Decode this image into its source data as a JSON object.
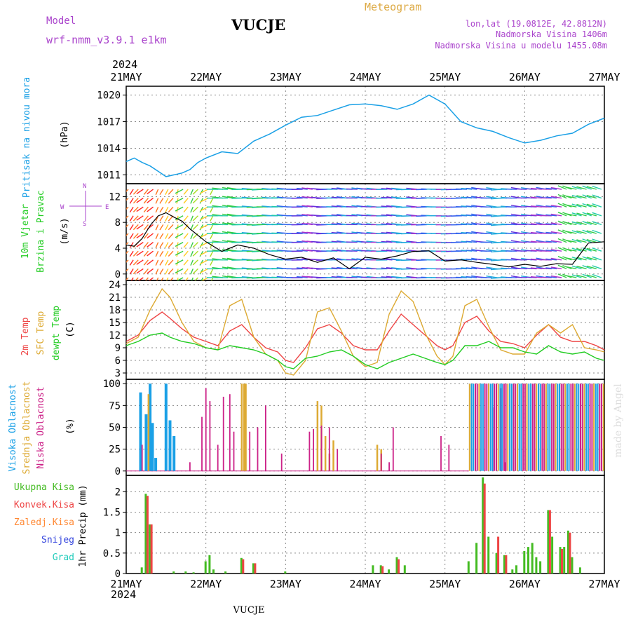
{
  "header": {
    "model_label": "Model",
    "model_name": "wrf-nmm_v3.9.1  e1km",
    "station": "VUCJE",
    "meteogram_label": "Meteogram",
    "lonlat": "lon,lat (19.0812E, 42.8812N)",
    "elevation": "Nadmorska Visina 1406m",
    "model_elevation": "Nadmorska Visina u modelu 1455.08m"
  },
  "footer": {
    "station": "VUCJE",
    "credit": "made by Angel"
  },
  "time_axis": {
    "year": "2024",
    "labels": [
      "21MAY",
      "22MAY",
      "23MAY",
      "24MAY",
      "25MAY",
      "26MAY",
      "27MAY"
    ],
    "x_days": [
      0,
      1,
      2,
      3,
      4,
      5,
      6
    ]
  },
  "colors": {
    "pressure": "#1aa0e6",
    "wind_label": "#22cc22",
    "temp2m": "#ee4444",
    "sfc": "#ddaa33",
    "dew": "#22cc22",
    "cloud_high": "#1aa0e6",
    "cloud_mid": "#ddaa33",
    "cloud_low": "#cc2288",
    "rain_total": "#44bb22",
    "rain_conv": "#ee4444",
    "rain_frozen": "#ff8833",
    "snow": "#3344dd",
    "hail": "#22ccbb",
    "legend_purple": "#aa44cc"
  },
  "chart_data": [
    {
      "type": "line",
      "title": "Pritisak na nivou mora",
      "ylabel": "(hPa)",
      "ylim": [
        1010,
        1021
      ],
      "yticks": [
        "1011",
        "1014",
        "1017",
        "1020"
      ],
      "series": [
        {
          "x": [
            0,
            0.1,
            0.2,
            0.3,
            0.4,
            0.5,
            0.6,
            0.7,
            0.8,
            0.9,
            1.0,
            1.2,
            1.4,
            1.6,
            1.8,
            2.0,
            2.2,
            2.4,
            2.6,
            2.8,
            3.0,
            3.2,
            3.4,
            3.6,
            3.8,
            4.0,
            4.2,
            4.4,
            4.6,
            4.8,
            5.0,
            5.2,
            5.4,
            5.6,
            5.8,
            6.0
          ],
          "values": [
            1012.5,
            1012.9,
            1012.4,
            1012.0,
            1011.4,
            1010.8,
            1011.0,
            1011.2,
            1011.6,
            1012.4,
            1012.9,
            1013.6,
            1013.4,
            1014.8,
            1015.6,
            1016.6,
            1017.5,
            1017.7,
            1018.3,
            1018.9,
            1019.0,
            1018.8,
            1018.4,
            1019.0,
            1020.0,
            1019.0,
            1017.0,
            1016.3,
            1015.9,
            1015.2,
            1014.6,
            1014.9,
            1015.4,
            1015.7,
            1016.7,
            1017.4
          ]
        }
      ]
    },
    {
      "type": "line",
      "title": "10m Vjetar Brzina i Pravac",
      "ylabel": "(m/s)",
      "ylim": [
        -1,
        14
      ],
      "yticks": [
        "0",
        "4",
        "8",
        "12"
      ],
      "compass": [
        "N",
        "E",
        "S",
        "W"
      ],
      "series": [
        {
          "name": "Brzina",
          "x": [
            0,
            0.1,
            0.2,
            0.3,
            0.4,
            0.5,
            0.6,
            0.7,
            0.8,
            0.9,
            1.0,
            1.2,
            1.4,
            1.6,
            1.8,
            2.0,
            2.2,
            2.4,
            2.6,
            2.8,
            3.0,
            3.2,
            3.4,
            3.6,
            3.8,
            4.0,
            4.2,
            4.4,
            4.6,
            4.8,
            5.0,
            5.2,
            5.4,
            5.6,
            5.8,
            6.0
          ],
          "values": [
            4.5,
            4.3,
            5.5,
            7.5,
            9.0,
            9.5,
            8.8,
            8.2,
            7.0,
            6.0,
            5.0,
            3.5,
            4.5,
            4.0,
            3.0,
            2.3,
            2.6,
            1.8,
            2.5,
            0.8,
            2.6,
            2.3,
            2.8,
            3.5,
            3.6,
            2.0,
            2.2,
            1.8,
            1.5,
            1.1,
            1.5,
            1.2,
            1.6,
            1.5,
            4.8,
            5.0
          ]
        }
      ]
    },
    {
      "type": "line",
      "title": "2m Temp / SFC Temp / dewpt Temp",
      "ylabel": "(C)",
      "ylim": [
        1.5,
        25
      ],
      "yticks": [
        "3",
        "6",
        "9",
        "12",
        "15",
        "18",
        "21",
        "24"
      ],
      "series": [
        {
          "name": "2m Temp",
          "x": [
            0,
            0.15,
            0.3,
            0.45,
            0.55,
            0.7,
            0.85,
            1.0,
            1.15,
            1.3,
            1.45,
            1.6,
            1.75,
            1.9,
            2.0,
            2.1,
            2.25,
            2.4,
            2.55,
            2.7,
            2.85,
            3.0,
            3.15,
            3.3,
            3.45,
            3.6,
            3.75,
            3.9,
            4.0,
            4.1,
            4.25,
            4.4,
            4.55,
            4.7,
            4.85,
            5.0,
            5.15,
            5.3,
            5.45,
            5.6,
            5.75,
            5.9,
            6.0
          ],
          "values": [
            10.5,
            12.0,
            15.5,
            17.5,
            16.0,
            13.5,
            11.5,
            10.5,
            9.5,
            13.0,
            14.5,
            11.5,
            9.0,
            8.0,
            6.0,
            5.5,
            9.0,
            13.5,
            14.5,
            12.5,
            9.5,
            8.5,
            8.5,
            13.0,
            17.0,
            14.5,
            12.0,
            9.5,
            8.5,
            9.5,
            15.0,
            16.5,
            13.0,
            10.5,
            10.0,
            9.0,
            12.0,
            14.5,
            11.5,
            10.5,
            10.5,
            9.5,
            8.5
          ]
        },
        {
          "name": "SFC Temp",
          "x": [
            0,
            0.15,
            0.3,
            0.45,
            0.55,
            0.7,
            0.85,
            1.0,
            1.15,
            1.3,
            1.45,
            1.6,
            1.75,
            1.9,
            2.0,
            2.1,
            2.25,
            2.4,
            2.55,
            2.7,
            2.85,
            3.0,
            3.15,
            3.3,
            3.45,
            3.6,
            3.75,
            3.9,
            4.0,
            4.1,
            4.25,
            4.4,
            4.55,
            4.7,
            4.85,
            5.0,
            5.15,
            5.3,
            5.45,
            5.6,
            5.75,
            5.9,
            6.0
          ],
          "values": [
            10.0,
            11.5,
            18.0,
            23.0,
            21.0,
            15.0,
            10.5,
            9.0,
            8.5,
            19.0,
            20.5,
            11.5,
            7.5,
            6.0,
            3.0,
            2.5,
            6.0,
            17.5,
            18.5,
            13.0,
            7.0,
            4.5,
            5.5,
            17.0,
            22.5,
            20.0,
            12.5,
            7.0,
            5.0,
            7.0,
            19.0,
            20.5,
            14.0,
            8.5,
            7.5,
            7.5,
            12.5,
            14.5,
            12.5,
            14.5,
            9.0,
            8.5,
            8.0
          ]
        },
        {
          "name": "dewpt Temp",
          "x": [
            0,
            0.15,
            0.3,
            0.45,
            0.55,
            0.7,
            0.85,
            1.0,
            1.15,
            1.3,
            1.45,
            1.6,
            1.75,
            1.9,
            2.0,
            2.1,
            2.25,
            2.4,
            2.55,
            2.7,
            2.85,
            3.0,
            3.15,
            3.3,
            3.45,
            3.6,
            3.75,
            3.9,
            4.0,
            4.1,
            4.25,
            4.4,
            4.55,
            4.7,
            4.85,
            5.0,
            5.15,
            5.3,
            5.45,
            5.6,
            5.75,
            5.9,
            6.0
          ],
          "values": [
            9.5,
            10.5,
            12.0,
            12.5,
            11.5,
            10.5,
            10.0,
            9.0,
            8.5,
            9.5,
            9.0,
            8.5,
            7.5,
            6.0,
            4.5,
            4.0,
            6.5,
            7.0,
            8.0,
            8.5,
            7.0,
            5.0,
            4.0,
            5.5,
            6.5,
            7.5,
            6.5,
            5.5,
            5.0,
            6.0,
            9.5,
            9.5,
            10.5,
            9.0,
            9.0,
            8.0,
            7.5,
            9.5,
            8.0,
            7.5,
            8.0,
            6.5,
            6.0
          ]
        }
      ]
    },
    {
      "type": "bar",
      "title": "Visoka / Srednja / Niska Oblacnost",
      "ylabel": "(%)",
      "ylim": [
        -5,
        105
      ],
      "yticks": [
        "0",
        "25",
        "50",
        "75",
        "100"
      ],
      "series": [
        {
          "name": "Visoka Oblacnost",
          "x": [
            0.18,
            0.25,
            0.3,
            0.33,
            0.37,
            0.5,
            0.55,
            0.6
          ],
          "values": [
            90,
            65,
            100,
            55,
            15,
            100,
            58,
            40
          ]
        },
        {
          "name": "Srednja Oblacnost",
          "x": [
            0.28,
            1.45,
            1.48,
            1.5,
            2.4,
            2.45,
            2.5,
            2.55,
            2.6,
            3.15,
            3.2
          ],
          "values": [
            88,
            100,
            100,
            100,
            80,
            75,
            40,
            20,
            35,
            30,
            25
          ]
        },
        {
          "name": "Niska Oblacnost",
          "x": [
            0.2,
            0.8,
            0.95,
            1.0,
            1.05,
            1.15,
            1.22,
            1.3,
            1.35,
            1.55,
            1.65,
            1.75,
            1.95,
            2.3,
            2.35,
            2.45,
            2.55,
            2.65,
            3.2,
            3.3,
            3.35,
            3.95,
            4.05,
            4.6,
            4.7,
            4.75
          ],
          "values": [
            30,
            10,
            62,
            95,
            80,
            30,
            85,
            88,
            45,
            45,
            50,
            75,
            20,
            45,
            48,
            52,
            50,
            25,
            20,
            10,
            50,
            40,
            30,
            73,
            95,
            10
          ]
        }
      ],
      "dense_band": {
        "from": 4.3,
        "to": 6.0,
        "value": 100
      }
    },
    {
      "type": "bar",
      "title": "1hr Precip",
      "ylabel": "(mm)",
      "ylim": [
        0,
        2.4
      ],
      "yticks": [
        "0",
        "0.5",
        "1",
        "1.5",
        "2"
      ],
      "legend": [
        "Ukupna Kisa",
        "Konvek.Kisa",
        "Zaledj.Kisa",
        "Snijeg",
        "Grad"
      ],
      "series": [
        {
          "name": "Ukupna Kisa",
          "x": [
            0.2,
            0.25,
            0.3,
            0.6,
            0.75,
            0.85,
            1.0,
            1.05,
            1.1,
            1.25,
            1.45,
            1.6,
            2.0,
            3.1,
            3.2,
            3.3,
            3.4,
            3.5,
            4.3,
            4.4,
            4.48,
            4.55,
            4.65,
            4.75,
            4.85,
            4.9,
            5.0,
            5.05,
            5.1,
            5.15,
            5.2,
            5.3,
            5.35,
            5.45,
            5.5,
            5.55,
            5.6,
            5.7
          ],
          "values": [
            0.15,
            1.95,
            1.2,
            0.05,
            0.05,
            0.03,
            0.3,
            0.45,
            0.1,
            0.05,
            0.38,
            0.25,
            0.05,
            0.2,
            0.2,
            0.1,
            0.4,
            0.2,
            0.3,
            0.75,
            2.35,
            0.9,
            0.5,
            0.45,
            0.1,
            0.2,
            0.55,
            0.65,
            0.75,
            0.4,
            0.3,
            1.55,
            0.9,
            0.65,
            0.65,
            1.05,
            0.4,
            0.15
          ]
        },
        {
          "name": "Konvek.Kisa",
          "x": [
            0.25,
            0.3,
            1.45,
            1.6,
            3.2,
            3.4,
            4.48,
            4.65,
            4.75,
            5.3,
            5.45,
            5.55
          ],
          "values": [
            1.9,
            1.2,
            0.35,
            0.25,
            0.18,
            0.35,
            2.2,
            0.9,
            0.45,
            1.55,
            0.6,
            1.0
          ]
        }
      ]
    }
  ]
}
